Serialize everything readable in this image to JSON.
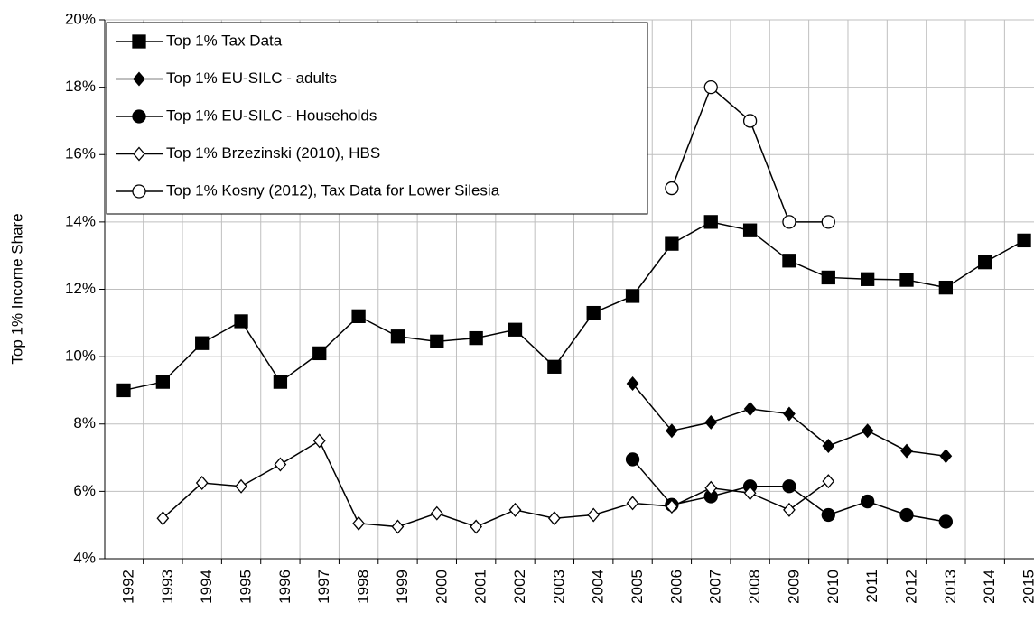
{
  "chart_data": {
    "type": "line",
    "ylabel": "Top 1% Income Share",
    "categories": [
      "1992",
      "1993",
      "1994",
      "1995",
      "1996",
      "1997",
      "1998",
      "1999",
      "2000",
      "2001",
      "2002",
      "2003",
      "2004",
      "2005",
      "2006",
      "2007",
      "2008",
      "2009",
      "2010",
      "2011",
      "2012",
      "2013",
      "2014",
      "2015"
    ],
    "series": [
      {
        "name": "Top 1% Tax Data",
        "color": "#000000",
        "marker": "square",
        "fill": "#000000",
        "values": [
          9.0,
          9.25,
          10.4,
          11.05,
          9.25,
          10.1,
          11.2,
          10.6,
          10.45,
          10.55,
          10.8,
          9.7,
          11.3,
          11.8,
          13.35,
          14.0,
          13.75,
          12.85,
          12.35,
          12.3,
          12.28,
          12.05,
          12.8,
          13.45
        ]
      },
      {
        "name": "Top 1% EU-SILC - adults",
        "color": "#000000",
        "marker": "diamond",
        "fill": "#000000",
        "values": [
          null,
          null,
          null,
          null,
          null,
          null,
          null,
          null,
          null,
          null,
          null,
          null,
          null,
          9.2,
          7.8,
          8.05,
          8.45,
          8.3,
          7.35,
          7.8,
          7.2,
          7.05,
          null,
          null
        ]
      },
      {
        "name": "Top 1% EU-SILC - Households",
        "color": "#000000",
        "marker": "circle",
        "fill": "#000000",
        "values": [
          null,
          null,
          null,
          null,
          null,
          null,
          null,
          null,
          null,
          null,
          null,
          null,
          null,
          6.95,
          5.6,
          5.85,
          6.15,
          6.15,
          5.3,
          5.7,
          5.3,
          5.1,
          null,
          null
        ]
      },
      {
        "name": "Top 1% Brzezinski (2010), HBS",
        "color": "#000000",
        "marker": "diamond",
        "fill": "#ffffff",
        "values": [
          null,
          5.2,
          6.25,
          6.15,
          6.8,
          7.5,
          5.05,
          4.95,
          5.35,
          4.95,
          5.45,
          5.2,
          5.3,
          5.65,
          5.55,
          6.1,
          5.95,
          5.45,
          6.3,
          null,
          null,
          null,
          null,
          null
        ]
      },
      {
        "name": "Top 1% Kosny (2012), Tax Data for Lower Silesia",
        "color": "#000000",
        "marker": "circle",
        "fill": "#ffffff",
        "values": [
          null,
          null,
          null,
          null,
          null,
          null,
          null,
          null,
          null,
          null,
          null,
          null,
          null,
          null,
          15.0,
          18.0,
          17.0,
          14.0,
          14.0,
          null,
          null,
          null,
          null,
          null
        ]
      }
    ],
    "ylim": [
      4,
      20
    ],
    "yticks": [
      {
        "value": 4,
        "label": "4%"
      },
      {
        "value": 6,
        "label": "6%"
      },
      {
        "value": 8,
        "label": "8%"
      },
      {
        "value": 10,
        "label": "10%"
      },
      {
        "value": 12,
        "label": "12%"
      },
      {
        "value": 14,
        "label": "14%"
      },
      {
        "value": 16,
        "label": "16%"
      },
      {
        "value": 18,
        "label": "18%"
      },
      {
        "value": 20,
        "label": "20%"
      }
    ],
    "grid": true,
    "legend": "upper left"
  }
}
